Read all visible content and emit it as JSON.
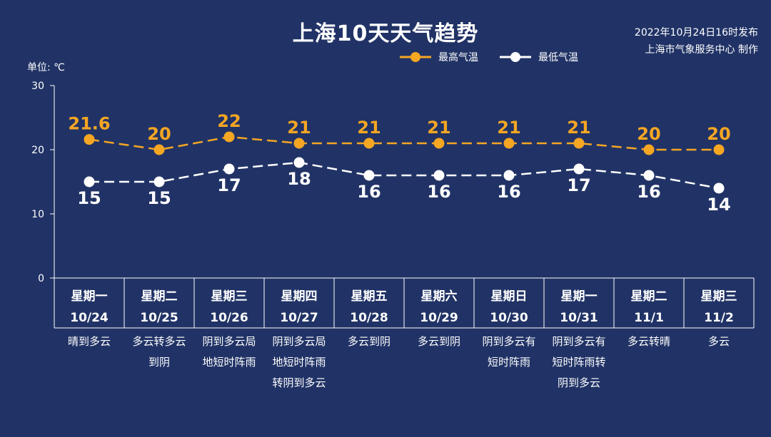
{
  "title": "上海10天天气趋势",
  "meta": {
    "line1": "2022年10月24日16时发布",
    "line2": "上海市气象服务中心 制作"
  },
  "unit_label": "单位: ℃",
  "colors": {
    "background": "#213366",
    "high": "#f5a623",
    "low": "#ffffff",
    "axis": "#ffffff"
  },
  "chart_data": {
    "type": "line",
    "categories": [
      {
        "weekday": "星期一",
        "date": "10/24",
        "weather": [
          "晴到多云"
        ]
      },
      {
        "weekday": "星期二",
        "date": "10/25",
        "weather": [
          "多云转多云",
          "到阴"
        ]
      },
      {
        "weekday": "星期三",
        "date": "10/26",
        "weather": [
          "阴到多云局",
          "地短时阵雨"
        ]
      },
      {
        "weekday": "星期四",
        "date": "10/27",
        "weather": [
          "阴到多云局",
          "地短时阵雨",
          "转阴到多云"
        ]
      },
      {
        "weekday": "星期五",
        "date": "10/28",
        "weather": [
          "多云到阴"
        ]
      },
      {
        "weekday": "星期六",
        "date": "10/29",
        "weather": [
          "多云到阴"
        ]
      },
      {
        "weekday": "星期日",
        "date": "10/30",
        "weather": [
          "阴到多云有",
          "短时阵雨"
        ]
      },
      {
        "weekday": "星期一",
        "date": "10/31",
        "weather": [
          "阴到多云有",
          "短时阵雨转",
          "阴到多云"
        ]
      },
      {
        "weekday": "星期二",
        "date": "11/1",
        "weather": [
          "多云转晴"
        ]
      },
      {
        "weekday": "星期三",
        "date": "11/2",
        "weather": [
          "多云"
        ]
      }
    ],
    "series": [
      {
        "name": "最高气温",
        "values": [
          21.6,
          20,
          22,
          21,
          21,
          21,
          21,
          21,
          20,
          20
        ],
        "labels": [
          "21.6",
          "20",
          "22",
          "21",
          "21",
          "21",
          "21",
          "21",
          "20",
          "20"
        ]
      },
      {
        "name": "最低气温",
        "values": [
          15,
          15,
          17,
          18,
          16,
          16,
          16,
          17,
          16,
          14
        ],
        "labels": [
          "15",
          "15",
          "17",
          "18",
          "16",
          "16",
          "16",
          "17",
          "16",
          "14"
        ]
      }
    ],
    "ylim": [
      0,
      30
    ],
    "yticks": [
      "0",
      "10",
      "20",
      "30"
    ],
    "legend_position": "top"
  }
}
